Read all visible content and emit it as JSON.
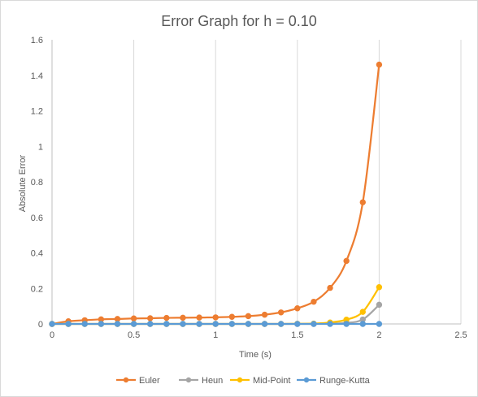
{
  "chart_data": {
    "type": "scatter",
    "title": "Error Graph for h = 0.10",
    "xlabel": "Time (s)",
    "ylabel": "Absolute Error",
    "xlim": [
      0,
      2.5
    ],
    "ylim": [
      0,
      1.6
    ],
    "x_ticks": [
      0,
      0.5,
      1,
      1.5,
      2,
      2.5
    ],
    "x_tick_labels": [
      "0",
      "0.5",
      "1",
      "1.5",
      "2",
      "2.5"
    ],
    "y_ticks": [
      0,
      0.2,
      0.4,
      0.6,
      0.8,
      1,
      1.2,
      1.4,
      1.6
    ],
    "y_tick_labels": [
      "0",
      "0.2",
      "0.4",
      "0.6",
      "0.8",
      "1",
      "1.2",
      "1.4",
      "1.6"
    ],
    "grid": "vertical major gridlines",
    "legend_position": "bottom",
    "x": [
      0,
      0.1,
      0.2,
      0.3,
      0.4,
      0.5,
      0.6,
      0.7,
      0.8,
      0.9,
      1.0,
      1.1,
      1.2,
      1.3,
      1.4,
      1.5,
      1.6,
      1.7,
      1.8,
      1.9,
      2.0
    ],
    "series": [
      {
        "name": "Euler",
        "color": "#ed7d31",
        "values": [
          0.0,
          0.015,
          0.021,
          0.026,
          0.028,
          0.031,
          0.032,
          0.034,
          0.035,
          0.036,
          0.037,
          0.04,
          0.044,
          0.052,
          0.065,
          0.088,
          0.125,
          0.203,
          0.355,
          0.685,
          1.46
        ]
      },
      {
        "name": "Heun",
        "color": "#a5a5a5",
        "values": [
          0,
          0,
          0,
          0,
          0,
          0,
          0,
          0,
          0,
          0,
          0,
          0,
          0,
          0,
          0,
          0,
          0,
          0.002,
          0.006,
          0.025,
          0.108
        ]
      },
      {
        "name": "Mid-Point",
        "color": "#ffc000",
        "values": [
          0,
          0,
          0,
          0,
          0,
          0,
          0,
          0,
          0,
          0,
          0,
          0,
          0,
          0,
          0,
          0.001,
          0.002,
          0.008,
          0.024,
          0.068,
          0.207
        ]
      },
      {
        "name": "Runge-Kutta",
        "color": "#5b9bd5",
        "values": [
          0,
          0,
          0,
          0,
          0,
          0,
          0,
          0,
          0,
          0,
          0,
          0,
          0,
          0,
          0,
          0,
          0,
          0,
          0,
          0,
          0
        ]
      }
    ]
  }
}
